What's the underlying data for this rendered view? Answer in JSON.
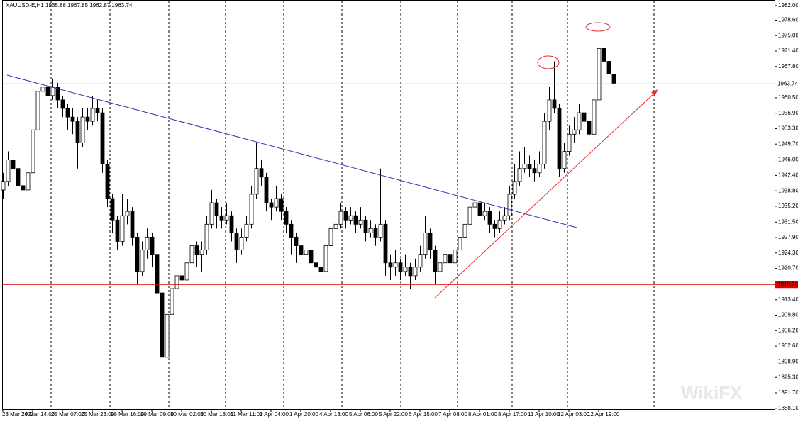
{
  "chart_data": {
    "type": "candlestick",
    "title": "XAUUSD-E,H1  1965.88 1967.85 1962.87 1963.74",
    "watermark": "WikiFX",
    "up_color": "#ffffff",
    "down_color": "#000000",
    "wick_color": "#000000",
    "categories": [
      "23 Mar 2022",
      null,
      null,
      null,
      null,
      null,
      "24 Mar 14:00",
      null,
      null,
      null,
      null,
      null,
      "25 Mar 07:00",
      null,
      null,
      null,
      null,
      null,
      "25 Mar 23:00",
      null,
      null,
      null,
      null,
      null,
      "28 Mar 16:00",
      null,
      null,
      null,
      null,
      null,
      "29 Mar 09:00",
      null,
      null,
      null,
      null,
      null,
      "30 Mar 02:00",
      null,
      null,
      null,
      null,
      null,
      "30 Mar 18:00",
      null,
      null,
      null,
      null,
      null,
      "31 Mar 11:00",
      null,
      null,
      null,
      null,
      null,
      "1 Apr 04:00",
      null,
      null,
      null,
      null,
      null,
      "1 Apr 20:00",
      null,
      null,
      null,
      null,
      null,
      "4 Apr 13:00",
      null,
      null,
      null,
      null,
      null,
      "5 Apr 06:00",
      null,
      null,
      null,
      null,
      null,
      "5 Apr 22:00",
      null,
      null,
      null,
      null,
      null,
      "6 Apr 15:00",
      null,
      null,
      null,
      null,
      null,
      "7 Apr 08:00",
      null,
      null,
      null,
      null,
      null,
      "8 Apr 01:00",
      null,
      null,
      null,
      null,
      null,
      "8 Apr 17:00",
      null,
      null,
      null,
      null,
      null,
      "11 Apr 10:00",
      null,
      null,
      null,
      null,
      null,
      "12 Apr 03:00",
      null,
      null,
      null,
      null,
      null,
      "12 Apr 19:00",
      null,
      null,
      null
    ],
    "ohlc": [
      [
        1939,
        1943,
        1937,
        1941
      ],
      [
        1941,
        1948,
        1940,
        1946
      ],
      [
        1946,
        1947,
        1943,
        1944
      ],
      [
        1944,
        1945,
        1938,
        1940
      ],
      [
        1940,
        1941,
        1937,
        1939
      ],
      [
        1939,
        1944,
        1938,
        1943
      ],
      [
        1943,
        1955,
        1942,
        1953
      ],
      [
        1953,
        1966,
        1952,
        1962
      ],
      [
        1962,
        1966,
        1960,
        1963
      ],
      [
        1963,
        1964,
        1958,
        1961
      ],
      [
        1961,
        1965,
        1960,
        1963
      ],
      [
        1963,
        1964,
        1958,
        1960
      ],
      [
        1960,
        1961,
        1956,
        1958
      ],
      [
        1958,
        1959,
        1953,
        1956
      ],
      [
        1956,
        1958,
        1952,
        1955
      ],
      [
        1955,
        1956,
        1944,
        1950
      ],
      [
        1950,
        1958,
        1949,
        1956
      ],
      [
        1956,
        1958,
        1953,
        1955
      ],
      [
        1955,
        1961,
        1954,
        1958
      ],
      [
        1958,
        1960,
        1955,
        1957
      ],
      [
        1957,
        1958,
        1943,
        1945
      ],
      [
        1945,
        1946,
        1935,
        1937
      ],
      [
        1937,
        1938,
        1929,
        1932
      ],
      [
        1932,
        1933,
        1925,
        1927
      ],
      [
        1927,
        1938,
        1926,
        1933
      ],
      [
        1933,
        1937,
        1931,
        1934
      ],
      [
        1934,
        1935,
        1926,
        1928
      ],
      [
        1928,
        1929,
        1917,
        1920
      ],
      [
        1920,
        1927,
        1919,
        1925
      ],
      [
        1925,
        1930,
        1923,
        1928
      ],
      [
        1928,
        1929,
        1921,
        1924
      ],
      [
        1924,
        1925,
        1908,
        1915
      ],
      [
        1915,
        1916,
        1891,
        1900
      ],
      [
        1900,
        1913,
        1898,
        1910
      ],
      [
        1910,
        1918,
        1908,
        1916
      ],
      [
        1916,
        1922,
        1915,
        1919
      ],
      [
        1919,
        1921,
        1916,
        1918
      ],
      [
        1918,
        1925,
        1917,
        1922
      ],
      [
        1922,
        1928,
        1921,
        1926
      ],
      [
        1926,
        1927,
        1921,
        1924
      ],
      [
        1924,
        1927,
        1920,
        1925
      ],
      [
        1925,
        1933,
        1924,
        1931
      ],
      [
        1931,
        1939,
        1930,
        1936
      ],
      [
        1936,
        1937,
        1930,
        1933
      ],
      [
        1933,
        1935,
        1930,
        1932
      ],
      [
        1932,
        1936,
        1931,
        1933
      ],
      [
        1933,
        1934,
        1927,
        1929
      ],
      [
        1929,
        1930,
        1922,
        1925
      ],
      [
        1925,
        1930,
        1924,
        1928
      ],
      [
        1928,
        1933,
        1927,
        1931
      ],
      [
        1931,
        1940,
        1930,
        1938
      ],
      [
        1938,
        1950,
        1937,
        1944
      ],
      [
        1944,
        1946,
        1940,
        1942
      ],
      [
        1942,
        1943,
        1934,
        1936
      ],
      [
        1936,
        1937,
        1932,
        1935
      ],
      [
        1935,
        1940,
        1934,
        1937
      ],
      [
        1937,
        1938,
        1932,
        1934
      ],
      [
        1934,
        1935,
        1929,
        1931
      ],
      [
        1931,
        1932,
        1924,
        1928
      ],
      [
        1928,
        1929,
        1922,
        1926
      ],
      [
        1926,
        1927,
        1921,
        1924
      ],
      [
        1924,
        1928,
        1922,
        1925
      ],
      [
        1925,
        1926,
        1919,
        1922
      ],
      [
        1922,
        1924,
        1918,
        1921
      ],
      [
        1921,
        1922,
        1916,
        1920
      ],
      [
        1920,
        1928,
        1919,
        1926
      ],
      [
        1926,
        1932,
        1925,
        1930
      ],
      [
        1930,
        1937,
        1929,
        1931
      ],
      [
        1931,
        1936,
        1930,
        1934
      ],
      [
        1934,
        1935,
        1930,
        1932
      ],
      [
        1932,
        1935,
        1931,
        1933
      ],
      [
        1933,
        1934,
        1929,
        1931
      ],
      [
        1931,
        1935,
        1930,
        1932
      ],
      [
        1932,
        1933,
        1927,
        1929
      ],
      [
        1929,
        1932,
        1928,
        1930
      ],
      [
        1930,
        1931,
        1926,
        1928
      ],
      [
        1928,
        1944,
        1927,
        1931
      ],
      [
        1931,
        1932,
        1919,
        1922
      ],
      [
        1922,
        1924,
        1918,
        1921
      ],
      [
        1921,
        1925,
        1919,
        1922
      ],
      [
        1922,
        1923,
        1918,
        1920
      ],
      [
        1920,
        1924,
        1919,
        1921
      ],
      [
        1921,
        1922,
        1916,
        1919
      ],
      [
        1919,
        1923,
        1918,
        1921
      ],
      [
        1921,
        1926,
        1920,
        1924
      ],
      [
        1924,
        1933,
        1923,
        1929
      ],
      [
        1929,
        1930,
        1923,
        1925
      ],
      [
        1925,
        1926,
        1917,
        1920
      ],
      [
        1920,
        1924,
        1919,
        1922
      ],
      [
        1922,
        1926,
        1921,
        1924
      ],
      [
        1924,
        1925,
        1920,
        1922
      ],
      [
        1922,
        1927,
        1921,
        1925
      ],
      [
        1925,
        1930,
        1924,
        1928
      ],
      [
        1928,
        1933,
        1927,
        1931
      ],
      [
        1931,
        1937,
        1930,
        1935
      ],
      [
        1935,
        1938,
        1933,
        1936
      ],
      [
        1936,
        1937,
        1931,
        1933
      ],
      [
        1933,
        1936,
        1932,
        1934
      ],
      [
        1934,
        1935,
        1929,
        1931
      ],
      [
        1931,
        1932,
        1928,
        1930
      ],
      [
        1930,
        1934,
        1929,
        1932
      ],
      [
        1932,
        1935,
        1931,
        1933
      ],
      [
        1933,
        1940,
        1932,
        1938
      ],
      [
        1938,
        1945,
        1937,
        1941
      ],
      [
        1941,
        1948,
        1940,
        1944
      ],
      [
        1944,
        1949,
        1943,
        1945
      ],
      [
        1945,
        1947,
        1942,
        1944
      ],
      [
        1944,
        1946,
        1941,
        1943
      ],
      [
        1943,
        1948,
        1942,
        1945
      ],
      [
        1945,
        1957,
        1944,
        1955
      ],
      [
        1955,
        1963,
        1953,
        1960
      ],
      [
        1960,
        1969,
        1957,
        1958
      ],
      [
        1958,
        1959,
        1942,
        1944
      ],
      [
        1944,
        1950,
        1943,
        1948
      ],
      [
        1948,
        1954,
        1947,
        1952
      ],
      [
        1952,
        1956,
        1950,
        1953
      ],
      [
        1953,
        1959,
        1952,
        1957
      ],
      [
        1957,
        1960,
        1954,
        1955
      ],
      [
        1955,
        1956,
        1950,
        1952
      ],
      [
        1952,
        1962,
        1951,
        1960
      ],
      [
        1960,
        1978,
        1959,
        1972
      ],
      [
        1972,
        1976,
        1967,
        1969
      ],
      [
        1969,
        1970,
        1964,
        1966
      ],
      [
        1965.88,
        1967.85,
        1962.87,
        1963.74
      ]
    ],
    "ylim": [
      1887.9,
      1983.3
    ],
    "yticks": [
      {
        "value": 1982.0,
        "label": "1982.00"
      },
      {
        "value": 1978.6,
        "label": "1978.60"
      },
      {
        "value": 1975.0,
        "label": "1975.00"
      },
      {
        "value": 1971.4,
        "label": "1971.40"
      },
      {
        "value": 1967.8,
        "label": "1967.80"
      },
      {
        "value": 1960.5,
        "label": "1960.50"
      },
      {
        "value": 1956.9,
        "label": "1956.90"
      },
      {
        "value": 1953.3,
        "label": "1953.30"
      },
      {
        "value": 1949.7,
        "label": "1949.70"
      },
      {
        "value": 1946.0,
        "label": "1946.00"
      },
      {
        "value": 1942.4,
        "label": "1942.40"
      },
      {
        "value": 1938.8,
        "label": "1938.80"
      },
      {
        "value": 1935.2,
        "label": "1935.20"
      },
      {
        "value": 1931.5,
        "label": "1931.50"
      },
      {
        "value": 1927.9,
        "label": "1927.90"
      },
      {
        "value": 1924.3,
        "label": "1924.30"
      },
      {
        "value": 1920.7,
        "label": "1920.70"
      },
      {
        "value": 1913.4,
        "label": "1913.40"
      },
      {
        "value": 1909.8,
        "label": "1909.80"
      },
      {
        "value": 1906.2,
        "label": "1906.20"
      },
      {
        "value": 1902.6,
        "label": "1902.60"
      },
      {
        "value": 1898.9,
        "label": "1898.90"
      },
      {
        "value": 1895.3,
        "label": "1895.30"
      },
      {
        "value": 1891.7,
        "label": "1891.70"
      },
      {
        "value": 1888.1,
        "label": "1888.10"
      }
    ],
    "price_line": {
      "value": 1963.74,
      "color": "#c0c0c0"
    },
    "level_line": {
      "value": 1916.96,
      "color": "#e00000"
    }
  }
}
